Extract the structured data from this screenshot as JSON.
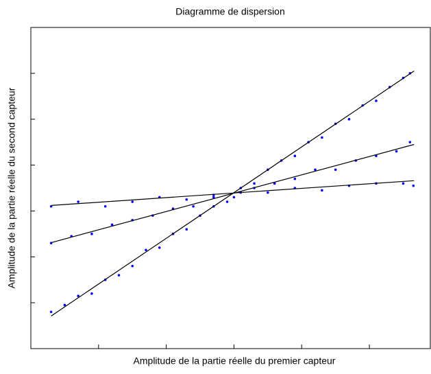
{
  "chart_data": {
    "type": "scatter",
    "title": "Diagramme de dispersion",
    "xlabel": "Amplitude de la partie réelle du premier capteur",
    "ylabel": "Amplitude de la partie réelle du second capteur",
    "xlim": [
      -3,
      2.9
    ],
    "ylim": [
      -3,
      4
    ],
    "xticks": [
      -2,
      -1,
      0,
      1,
      2
    ],
    "yticks": [
      -2,
      -1,
      0,
      1,
      2,
      3
    ],
    "grid": false,
    "series": [
      {
        "color": "#0000ff",
        "x": [
          -2.7,
          -2.5,
          -2.3,
          -2.1,
          -1.9,
          -1.7,
          -1.5,
          -1.3,
          -1.1,
          -0.9,
          -0.7,
          -0.5,
          -0.3,
          -0.1,
          0.1,
          0.3,
          0.5,
          0.7,
          0.9,
          1.1,
          1.3,
          1.5,
          1.7,
          1.9,
          2.1,
          2.3,
          2.5,
          2.6
        ],
        "y": [
          -2.2,
          -2.05,
          -1.85,
          -1.8,
          -1.5,
          -1.4,
          -1.2,
          -0.85,
          -0.8,
          -0.5,
          -0.4,
          -0.1,
          0.1,
          0.2,
          0.5,
          0.6,
          0.9,
          1.1,
          1.2,
          1.5,
          1.6,
          1.9,
          2.0,
          2.3,
          2.4,
          2.7,
          2.9,
          3.0
        ]
      },
      {
        "color": "#0000ff",
        "x": [
          -2.7,
          -2.4,
          -2.1,
          -1.8,
          -1.5,
          -1.2,
          -0.9,
          -0.6,
          -0.3,
          0,
          0.3,
          0.6,
          0.9,
          1.2,
          1.5,
          1.8,
          2.1,
          2.4,
          2.6
        ],
        "y": [
          -0.7,
          -0.55,
          -0.5,
          -0.3,
          -0.2,
          -0.1,
          0.05,
          0.1,
          0.3,
          0.3,
          0.5,
          0.6,
          0.7,
          0.9,
          0.9,
          1.1,
          1.2,
          1.3,
          1.5
        ]
      },
      {
        "color": "#0000ff",
        "x": [
          -2.7,
          -2.3,
          -1.9,
          -1.5,
          -1.1,
          -0.7,
          -0.3,
          0.1,
          0.5,
          0.9,
          1.3,
          1.7,
          2.1,
          2.5,
          2.65
        ],
        "y": [
          0.1,
          0.2,
          0.1,
          0.2,
          0.3,
          0.25,
          0.35,
          0.4,
          0.4,
          0.5,
          0.45,
          0.55,
          0.6,
          0.6,
          0.55
        ]
      }
    ],
    "lines": [
      {
        "color": "#000000",
        "x": [
          -2.7,
          2.66
        ],
        "y": [
          -2.29,
          3.05
        ]
      },
      {
        "color": "#000000",
        "x": [
          -2.7,
          2.66
        ],
        "y": [
          -0.69,
          1.45
        ]
      },
      {
        "color": "#000000",
        "x": [
          -2.7,
          2.66
        ],
        "y": [
          0.12,
          0.66
        ]
      }
    ]
  }
}
